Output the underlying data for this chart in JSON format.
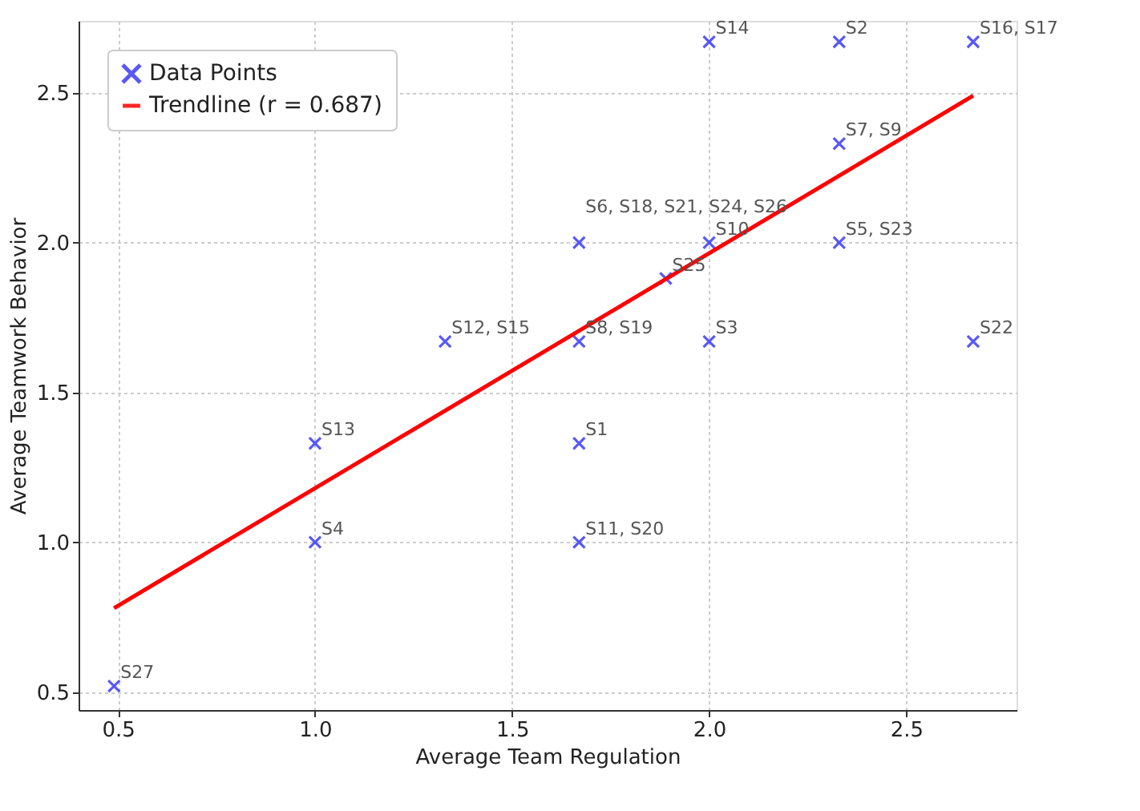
{
  "chart_data": {
    "type": "scatter",
    "xlabel": "Average Team Regulation",
    "ylabel": "Average Teamwork Behavior",
    "xlim": [
      0.4,
      2.78
    ],
    "ylim": [
      0.44,
      2.74
    ],
    "xticks": [
      {
        "value": 0.5,
        "label": "0.5"
      },
      {
        "value": 1,
        "label": "1.0"
      },
      {
        "value": 1.5,
        "label": "1.5"
      },
      {
        "value": 2,
        "label": "2.0"
      },
      {
        "value": 2.5,
        "label": "2.5"
      }
    ],
    "yticks": [
      {
        "value": 0.5,
        "label": "0.5"
      },
      {
        "value": 1,
        "label": "1.0"
      },
      {
        "value": 1.5,
        "label": "1.5"
      },
      {
        "value": 2,
        "label": "2.0"
      },
      {
        "value": 2.5,
        "label": "2.5"
      }
    ],
    "grid": true,
    "legend": "top left",
    "series": [
      {
        "name": "Data Points",
        "type": "scatter",
        "marker": "cross",
        "color": "#3b3bf5",
        "x": [
          0.49,
          1.0,
          1.0,
          1.33,
          1.67,
          1.67,
          1.67,
          1.67,
          1.89,
          2.0,
          2.0,
          2.0,
          2.33,
          2.33,
          2.33,
          2.67,
          2.67
        ],
        "values": [
          0.52,
          1.0,
          1.33,
          1.67,
          1.33,
          1.0,
          1.67,
          2.0,
          1.88,
          2.0,
          1.67,
          2.67,
          2.67,
          2.33,
          2.0,
          1.67,
          2.67
        ]
      },
      {
        "name": "Trendline (r = 0.687)",
        "type": "line",
        "line_style": "solid",
        "color": "#ff0000",
        "x": [
          0.49,
          2.67
        ],
        "values": [
          0.78,
          2.49
        ]
      }
    ],
    "annotations": [
      {
        "text": "S27",
        "x": 0.49,
        "y": 0.52
      },
      {
        "text": "S4",
        "x": 1.0,
        "y": 1.0
      },
      {
        "text": "S13",
        "x": 1.0,
        "y": 1.33
      },
      {
        "text": "S12, S15",
        "x": 1.33,
        "y": 1.67
      },
      {
        "text": "S1",
        "x": 1.67,
        "y": 1.33
      },
      {
        "text": "S11, S20",
        "x": 1.67,
        "y": 1.0
      },
      {
        "text": "S8, S19",
        "x": 1.67,
        "y": 1.67
      },
      {
        "text": "S6, S18, S21, S24, S26",
        "x": 1.67,
        "y": 2.0
      },
      {
        "text": "S25",
        "x": 1.89,
        "y": 1.88
      },
      {
        "text": "S10",
        "x": 2.0,
        "y": 2.0
      },
      {
        "text": "S3",
        "x": 2.0,
        "y": 1.67
      },
      {
        "text": "S14",
        "x": 2.0,
        "y": 2.67
      },
      {
        "text": "S2",
        "x": 2.33,
        "y": 2.67
      },
      {
        "text": "S7, S9",
        "x": 2.33,
        "y": 2.33
      },
      {
        "text": "S5, S23",
        "x": 2.33,
        "y": 2.0
      },
      {
        "text": "S22",
        "x": 2.67,
        "y": 1.67
      },
      {
        "text": "S16, S17",
        "x": 2.67,
        "y": 2.67
      }
    ]
  }
}
